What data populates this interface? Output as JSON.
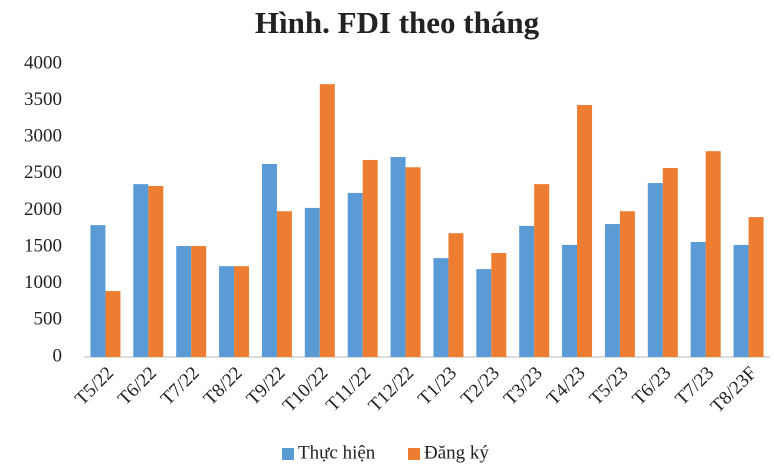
{
  "chart_data": {
    "type": "bar",
    "title": "Hình. FDI theo tháng",
    "categories": [
      "T5/22",
      "T6/22",
      "T7/22",
      "T8/22",
      "T9/22",
      "T10/22",
      "T11/22",
      "T12/22",
      "T1/23",
      "T2/23",
      "T3/23",
      "T4/23",
      "T5/23",
      "T6/23",
      "T7/23",
      "T8/23F"
    ],
    "series": [
      {
        "name": "Thực hiện",
        "color": "#5b9bd5",
        "values": [
          1800,
          2360,
          1515,
          1240,
          2635,
          2035,
          2240,
          2730,
          1350,
          1200,
          1790,
          1530,
          1815,
          2375,
          1570,
          1530
        ]
      },
      {
        "name": "Đăng ký",
        "color": "#ed7d31",
        "values": [
          900,
          2335,
          1515,
          1240,
          1990,
          3725,
          2690,
          2590,
          1690,
          1420,
          2360,
          3440,
          1990,
          2580,
          2810,
          1910
        ]
      }
    ],
    "ylim": [
      0,
      4000
    ],
    "yticks": [
      0,
      500,
      1000,
      1500,
      2000,
      2500,
      3000,
      3500,
      4000
    ],
    "grid": false,
    "legend": "bottom"
  }
}
